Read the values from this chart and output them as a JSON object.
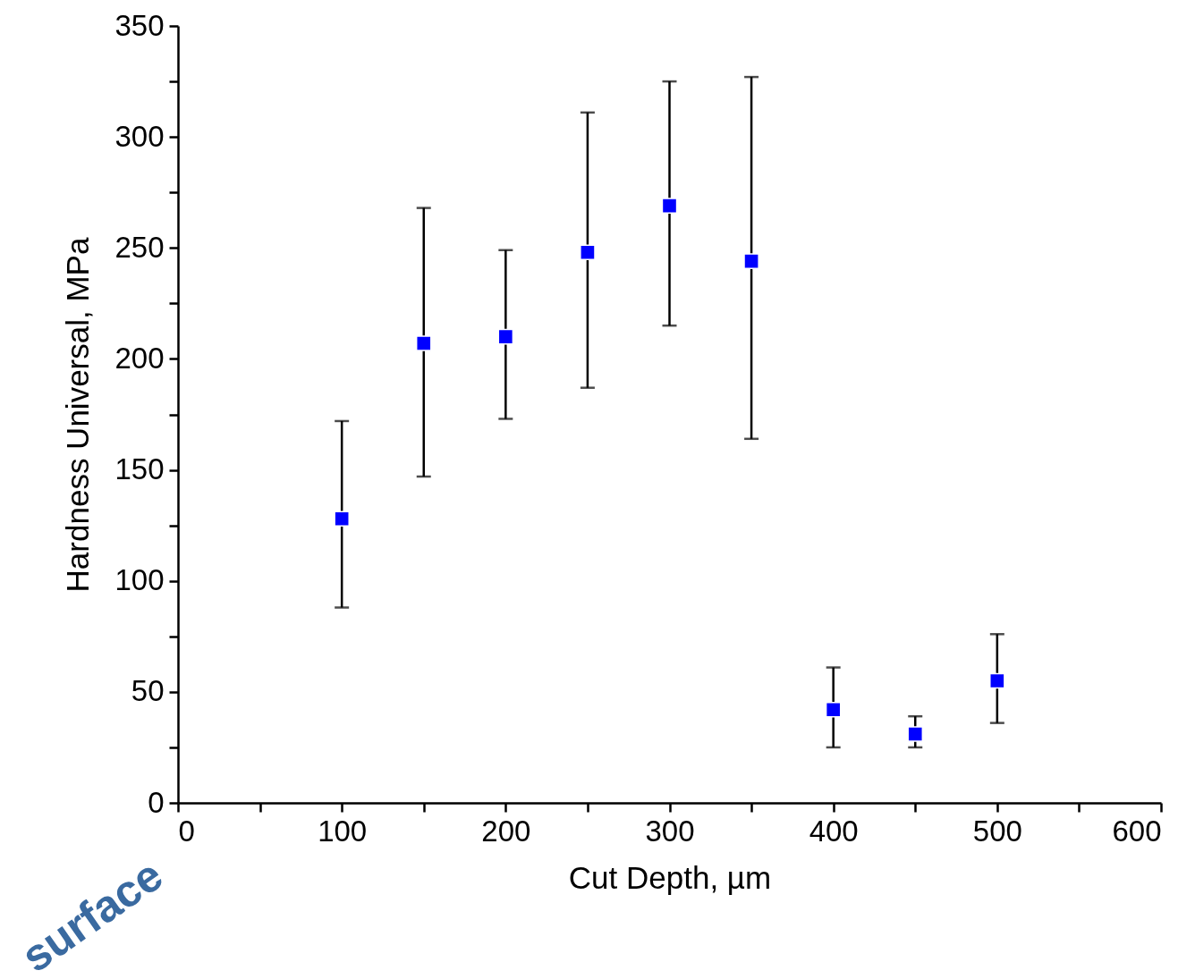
{
  "chart_data": {
    "type": "scatter",
    "xlabel": "Cut Depth, µm",
    "ylabel": "Hardness Universal, MPa",
    "x": [
      100,
      150,
      200,
      250,
      300,
      350,
      400,
      450,
      500
    ],
    "series": [
      {
        "color": "#0000ff",
        "values": [
          128,
          207,
          210,
          248,
          269,
          244,
          42,
          31,
          55
        ],
        "errors": [
          [
            88,
            172
          ],
          [
            147,
            268
          ],
          [
            173,
            249
          ],
          [
            187,
            311
          ],
          [
            215,
            325
          ],
          [
            164,
            327
          ],
          [
            25,
            61
          ],
          [
            25,
            39
          ],
          [
            36,
            76
          ]
        ]
      }
    ],
    "xlim": [
      0,
      600
    ],
    "ylim": [
      0,
      350
    ],
    "xticks": [
      0,
      {
        "value": 50,
        "label": null
      },
      100,
      {
        "value": 150,
        "label": null
      },
      200,
      {
        "value": 250,
        "label": null
      },
      300,
      {
        "value": 350,
        "label": null
      },
      400,
      {
        "value": 450,
        "label": null
      },
      500,
      {
        "value": 550,
        "label": null
      },
      600
    ],
    "yticks": [
      0,
      {
        "value": 25,
        "label": null
      },
      50,
      {
        "value": 75,
        "label": null
      },
      100,
      {
        "value": 125,
        "label": null
      },
      150,
      {
        "value": 175,
        "label": null
      },
      200,
      {
        "value": 225,
        "label": null
      },
      250,
      {
        "value": 275,
        "label": null
      },
      300,
      {
        "value": 325,
        "label": null
      },
      350
    ],
    "marker": "square",
    "grid": false,
    "annotations": [
      "surface"
    ]
  }
}
